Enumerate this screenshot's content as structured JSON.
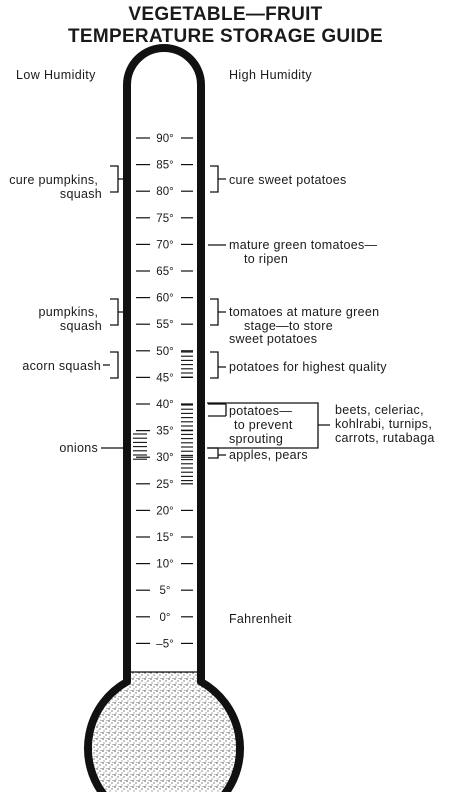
{
  "title": {
    "line1": "VEGETABLE—FRUIT",
    "line2": "TEMPERATURE STORAGE GUIDE"
  },
  "humidity": {
    "low": "Low Humidity",
    "high": "High Humidity"
  },
  "scale_unit": "Fahrenheit",
  "ticks": [
    "90°",
    "85°",
    "80°",
    "75°",
    "70°",
    "65°",
    "60°",
    "55°",
    "50°",
    "45°",
    "40°",
    "35°",
    "30°",
    "25°",
    "20°",
    "15°",
    "10°",
    "5°",
    "0°",
    "–5°"
  ],
  "left_labels": [
    {
      "lines": [
        "cure pumpkins,",
        "squash"
      ]
    },
    {
      "lines": [
        "pumpkins,",
        "squash"
      ]
    },
    {
      "lines": [
        "acorn squash"
      ]
    },
    {
      "lines": [
        "onions"
      ]
    }
  ],
  "right_labels": [
    {
      "lines": [
        "cure sweet potatoes"
      ]
    },
    {
      "lines": [
        "mature green tomatoes—",
        "to ripen"
      ]
    },
    {
      "lines": [
        "tomatoes at mature green",
        "stage—to store",
        "sweet potatoes"
      ]
    },
    {
      "lines": [
        "potatoes for highest quality"
      ]
    },
    {
      "lines": [
        "potatoes—",
        "to prevent",
        "sprouting"
      ]
    },
    {
      "lines": [
        "apples, pears"
      ]
    },
    {
      "lines": [
        "beets, celeriac,",
        "kohlrabi, turnips,",
        "carrots, rutabaga"
      ]
    }
  ]
}
